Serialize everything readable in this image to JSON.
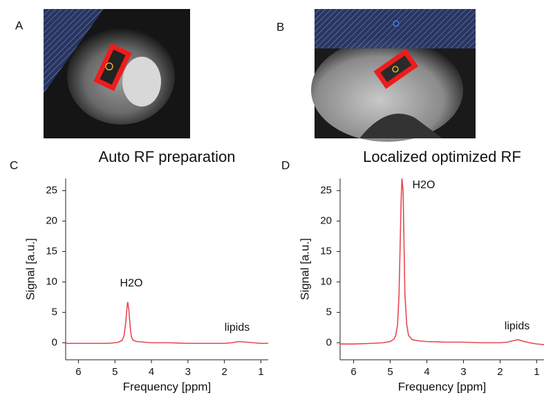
{
  "panel_labels": [
    "A",
    "B"
  ],
  "chart_data": [
    {
      "type": "line",
      "label": "C",
      "title": "Auto RF preparation",
      "x_label": "Frequency [ppm]",
      "y_label": "Signal [a.u.]",
      "xlim": [
        6.35,
        0.8
      ],
      "ylim": [
        -2.8,
        27
      ],
      "xticks": [
        6,
        5,
        4,
        3,
        2,
        1
      ],
      "yticks": [
        0,
        5,
        10,
        15,
        20,
        25
      ],
      "annotations": [
        "H2O",
        "lipids"
      ],
      "x": [
        6.35,
        6,
        5.5,
        5.2,
        5.0,
        4.9,
        4.8,
        4.75,
        4.7,
        4.67,
        4.65,
        4.62,
        4.58,
        4.55,
        4.5,
        4.4,
        4.2,
        4.0,
        3.5,
        3.0,
        2.5,
        2.0,
        1.8,
        1.6,
        1.4,
        1.2,
        1.0,
        0.8
      ],
      "series": [
        {
          "color": "#e8474f",
          "values": [
            -0.1,
            -0.1,
            -0.1,
            -0.1,
            0,
            0.1,
            0.4,
            1.2,
            3.5,
            5.8,
            6.7,
            5.5,
            2.5,
            1.0,
            0.4,
            0.2,
            0.1,
            0,
            0,
            -0.1,
            -0.1,
            -0.1,
            0,
            0.2,
            0.1,
            0,
            -0.1,
            -0.1
          ]
        }
      ]
    },
    {
      "type": "line",
      "label": "D",
      "title": "Localized optimized RF",
      "x_label": "Frequency [ppm]",
      "y_label": "Signal [a.u.]",
      "xlim": [
        6.37,
        0.8
      ],
      "ylim": [
        -2.8,
        27
      ],
      "xticks": [
        6,
        5,
        4,
        3,
        2,
        1
      ],
      "yticks": [
        0,
        5,
        10,
        15,
        20,
        25
      ],
      "annotations": [
        "H2O",
        "lipids"
      ],
      "x": [
        6.37,
        6,
        5.5,
        5.2,
        5.0,
        4.9,
        4.85,
        4.8,
        4.76,
        4.73,
        4.7,
        4.68,
        4.65,
        4.62,
        4.6,
        4.55,
        4.5,
        4.4,
        4.2,
        4.0,
        3.5,
        3.0,
        2.5,
        2.0,
        1.8,
        1.6,
        1.5,
        1.4,
        1.2,
        1.0,
        0.8
      ],
      "series": [
        {
          "color": "#e8474f",
          "values": [
            -0.2,
            -0.2,
            -0.1,
            0,
            0.2,
            0.6,
            1.2,
            3,
            8,
            16,
            24,
            27,
            25,
            15,
            8,
            3,
            1.2,
            0.5,
            0.3,
            0.2,
            0.1,
            0.1,
            0,
            0,
            0.1,
            0.4,
            0.5,
            0.3,
            0,
            -0.2,
            -0.3
          ]
        }
      ]
    }
  ]
}
